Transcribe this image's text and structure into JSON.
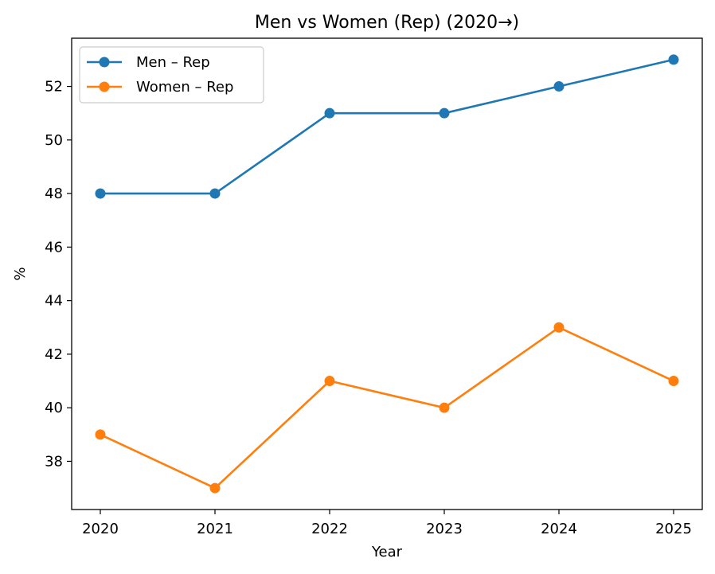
{
  "chart_data": {
    "type": "line",
    "title": "Men vs Women (Rep) (2020→)",
    "xlabel": "Year",
    "ylabel": "%",
    "x": [
      2020,
      2021,
      2022,
      2023,
      2024,
      2025
    ],
    "x_tick_labels": [
      "2020",
      "2021",
      "2022",
      "2023",
      "2024",
      "2025"
    ],
    "y_ticks": [
      38,
      40,
      42,
      44,
      46,
      48,
      50,
      52
    ],
    "y_tick_labels": [
      "38",
      "40",
      "42",
      "44",
      "46",
      "48",
      "50",
      "52"
    ],
    "ylim": [
      36.2,
      53.8
    ],
    "xlim": [
      2019.75,
      2025.25
    ],
    "grid": false,
    "legend_position": "top-left",
    "series": [
      {
        "name": "Men – Rep",
        "color": "#1f77b4",
        "marker": "circle",
        "values": [
          48,
          48,
          51,
          51,
          52,
          53
        ]
      },
      {
        "name": "Women – Rep",
        "color": "#ff7f0e",
        "marker": "circle",
        "values": [
          39,
          37,
          41,
          40,
          43,
          41
        ]
      }
    ]
  }
}
